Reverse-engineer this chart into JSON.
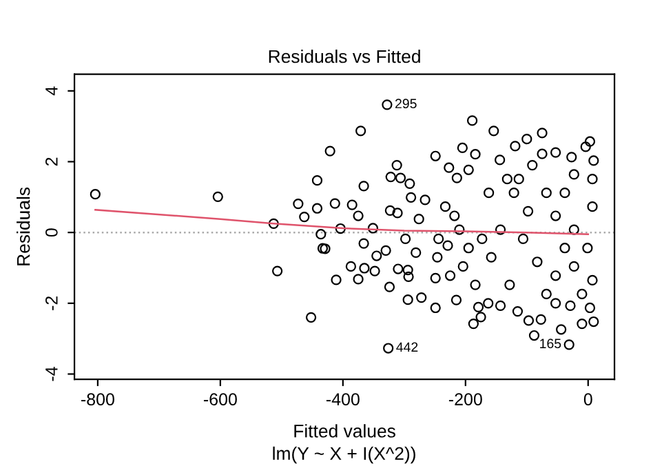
{
  "chart_data": {
    "type": "scatter",
    "title": "Residuals vs Fitted",
    "xlabel": "Fitted values",
    "ylabel": "Residuals",
    "xlim": [
      -838,
      43
    ],
    "ylim": [
      -4.15,
      4.47
    ],
    "xticks": [
      -800,
      -600,
      -400,
      -200,
      0
    ],
    "yticks": [
      -4,
      -2,
      0,
      2,
      4
    ],
    "grid": false,
    "legend": false,
    "series": [
      {
        "marker": "circle",
        "color": "#000000",
        "x": [
          -804,
          -604,
          -513,
          -507,
          -473,
          -463,
          -442,
          -442,
          -452,
          -436,
          -433,
          -429,
          -421,
          -328,
          -326,
          -31,
          -371,
          -189,
          -154,
          -100,
          -75,
          3,
          -249,
          -205,
          -312,
          -322,
          -366,
          -306,
          -291,
          -413,
          -385,
          -375,
          -404,
          -351,
          -323,
          -311,
          -366,
          -345,
          -330,
          -387,
          -365,
          -375,
          -348,
          -411,
          -324,
          -310,
          -294,
          -293,
          -294,
          -272,
          -249,
          -249,
          -281,
          -276,
          -266,
          -289,
          -298,
          -244,
          -246,
          -227,
          -214,
          -233,
          -218,
          -215,
          -225,
          -229,
          -204,
          -184,
          -195,
          -184,
          -179,
          -187,
          -175,
          -163,
          -143,
          -144,
          -119,
          -132,
          -162,
          -173,
          -158,
          -128,
          -115,
          -97,
          -88,
          -77,
          -68,
          -53,
          -44,
          -29,
          -10,
          9,
          3,
          -75,
          -53,
          -27,
          -4,
          9,
          -113,
          -91,
          -68,
          -23,
          7,
          7,
          -1,
          -23,
          7,
          -106,
          -83,
          -53,
          -38,
          -98,
          -121,
          -143,
          -195,
          -210,
          -23,
          -53,
          -10,
          -38
        ],
        "values": [
          1.08,
          1.01,
          0.25,
          -1.09,
          0.81,
          0.44,
          1.47,
          0.68,
          -2.4,
          -0.05,
          -0.45,
          -0.46,
          2.3,
          3.61,
          -3.27,
          -3.17,
          2.87,
          3.16,
          2.87,
          2.64,
          2.81,
          2.57,
          2.16,
          2.39,
          1.9,
          1.57,
          1.31,
          1.54,
          1.38,
          0.82,
          0.78,
          0.47,
          0.11,
          0.12,
          0.62,
          0.55,
          -0.31,
          -0.66,
          -0.51,
          -0.96,
          -1.01,
          -1.32,
          -1.09,
          -1.34,
          -1.54,
          -1.03,
          -1.06,
          -1.25,
          -1.9,
          -1.84,
          -2.13,
          -1.29,
          -0.57,
          0.38,
          0.92,
          0.99,
          -0.18,
          -0.18,
          -0.7,
          1.83,
          1.54,
          0.73,
          0.47,
          -1.91,
          -1.22,
          -0.37,
          -0.96,
          2.21,
          1.77,
          -1.48,
          -2.11,
          -2.58,
          -2.39,
          -2.0,
          -2.07,
          2.05,
          2.44,
          1.51,
          1.12,
          -0.18,
          -0.7,
          -1.48,
          -2.23,
          -2.49,
          -2.91,
          -2.46,
          -1.74,
          -2.0,
          -2.74,
          -2.07,
          -2.58,
          -2.52,
          -2.13,
          2.22,
          2.26,
          2.13,
          2.42,
          2.03,
          1.51,
          1.9,
          1.12,
          1.64,
          1.51,
          0.73,
          -0.44,
          -0.96,
          -1.35,
          -0.18,
          -0.83,
          0.47,
          -0.44,
          0.6,
          1.12,
          0.08,
          -0.44,
          0.08,
          0.08,
          -1.22,
          -1.74,
          1.12
        ]
      },
      {
        "type": "line",
        "color": "#df536b",
        "x": [
          -804,
          -600,
          -513,
          -400,
          -300,
          -200,
          -100,
          0
        ],
        "values": [
          0.64,
          0.38,
          0.25,
          0.12,
          0.05,
          0.03,
          0.0,
          -0.05
        ]
      }
    ],
    "ref_lines": [
      {
        "axis": "y",
        "value": 0,
        "color": "#aaaaaa",
        "line_style": "dotted"
      }
    ],
    "annotations": [
      {
        "text": "295",
        "x": -328,
        "y": 3.61
      },
      {
        "text": "442",
        "x": -326,
        "y": -3.27
      },
      {
        "text": "165",
        "x": -31,
        "y": -3.17
      },
      "lm(Y ~ X + I(X^2))"
    ]
  }
}
